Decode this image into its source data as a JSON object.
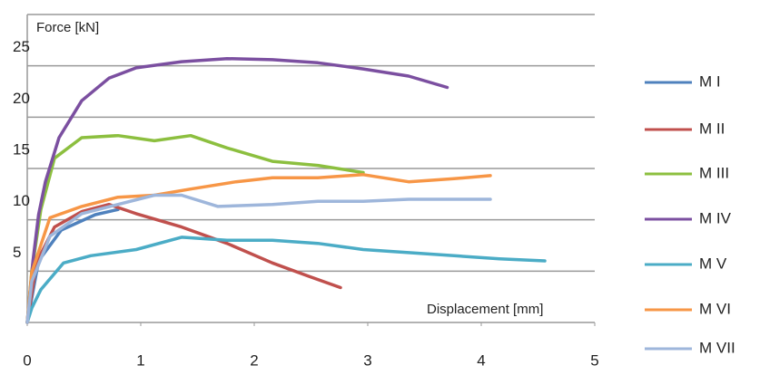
{
  "chart_data": {
    "type": "line",
    "y_label": "Force [kN]",
    "x_label": "Displacement [mm]",
    "xlim": [
      0,
      5
    ],
    "xticks": [
      0,
      1,
      2,
      3,
      4,
      5
    ],
    "ylim": [
      0,
      30
    ],
    "yticks": [
      5,
      10,
      15,
      20,
      25
    ],
    "grid": true,
    "legend": "right",
    "series": [
      {
        "name": "M I",
        "color": "#4f81bd",
        "x": [
          0,
          0.1,
          0.3,
          0.6,
          0.8
        ],
        "values": [
          0,
          6,
          9,
          10.5,
          11
        ]
      },
      {
        "name": "M II",
        "color": "#c0504d",
        "x": [
          0,
          0.08,
          0.24,
          0.48,
          0.72,
          0.96,
          1.36,
          1.76,
          2.16,
          2.48,
          2.76
        ],
        "values": [
          0,
          5.8,
          9.3,
          10.8,
          11.5,
          10.6,
          9.3,
          7.7,
          5.8,
          4.5,
          3.4
        ]
      },
      {
        "name": "M III",
        "color": "#8cbf3f",
        "x": [
          0,
          0.04,
          0.12,
          0.24,
          0.48,
          0.8,
          1.12,
          1.44,
          1.76,
          2.16,
          2.56,
          2.96
        ],
        "values": [
          0,
          5,
          11,
          16,
          18,
          18.2,
          17.7,
          18.2,
          17,
          15.7,
          15.3,
          14.6
        ]
      },
      {
        "name": "M IV",
        "color": "#7b4fa0",
        "x": [
          0,
          0.05,
          0.1,
          0.16,
          0.28,
          0.48,
          0.72,
          0.96,
          1.36,
          1.76,
          2.16,
          2.56,
          2.96,
          3.36,
          3.7
        ],
        "values": [
          0,
          6,
          10.5,
          13.7,
          18,
          21.6,
          23.8,
          24.8,
          25.4,
          25.7,
          25.6,
          25.3,
          24.7,
          24,
          22.9
        ]
      },
      {
        "name": "M V",
        "color": "#4bacc6",
        "x": [
          0,
          0.04,
          0.12,
          0.32,
          0.56,
          0.96,
          1.36,
          1.76,
          2.16,
          2.56,
          2.96,
          3.36,
          3.76,
          4.16,
          4.56
        ],
        "values": [
          0,
          1.4,
          3.2,
          5.8,
          6.5,
          7.1,
          8.3,
          8,
          8,
          7.7,
          7.1,
          6.8,
          6.5,
          6.2,
          6
        ]
      },
      {
        "name": "M VI",
        "color": "#f79646",
        "x": [
          0,
          0.04,
          0.2,
          0.48,
          0.8,
          1.12,
          1.44,
          1.84,
          2.16,
          2.56,
          2.96,
          3.36,
          3.76,
          4.08
        ],
        "values": [
          0,
          4.9,
          10.2,
          11.3,
          12.2,
          12.4,
          13,
          13.7,
          14.1,
          14.1,
          14.4,
          13.7,
          14,
          14.3
        ]
      },
      {
        "name": "M VII",
        "color": "#9eb6db",
        "x": [
          0,
          0.04,
          0.2,
          0.48,
          0.8,
          1.12,
          1.36,
          1.68,
          2.16,
          2.56,
          2.96,
          3.36,
          4.08
        ],
        "values": [
          0,
          4,
          8.4,
          10.6,
          11.5,
          12.4,
          12.4,
          11.3,
          11.5,
          11.8,
          11.8,
          12,
          12
        ]
      }
    ]
  }
}
